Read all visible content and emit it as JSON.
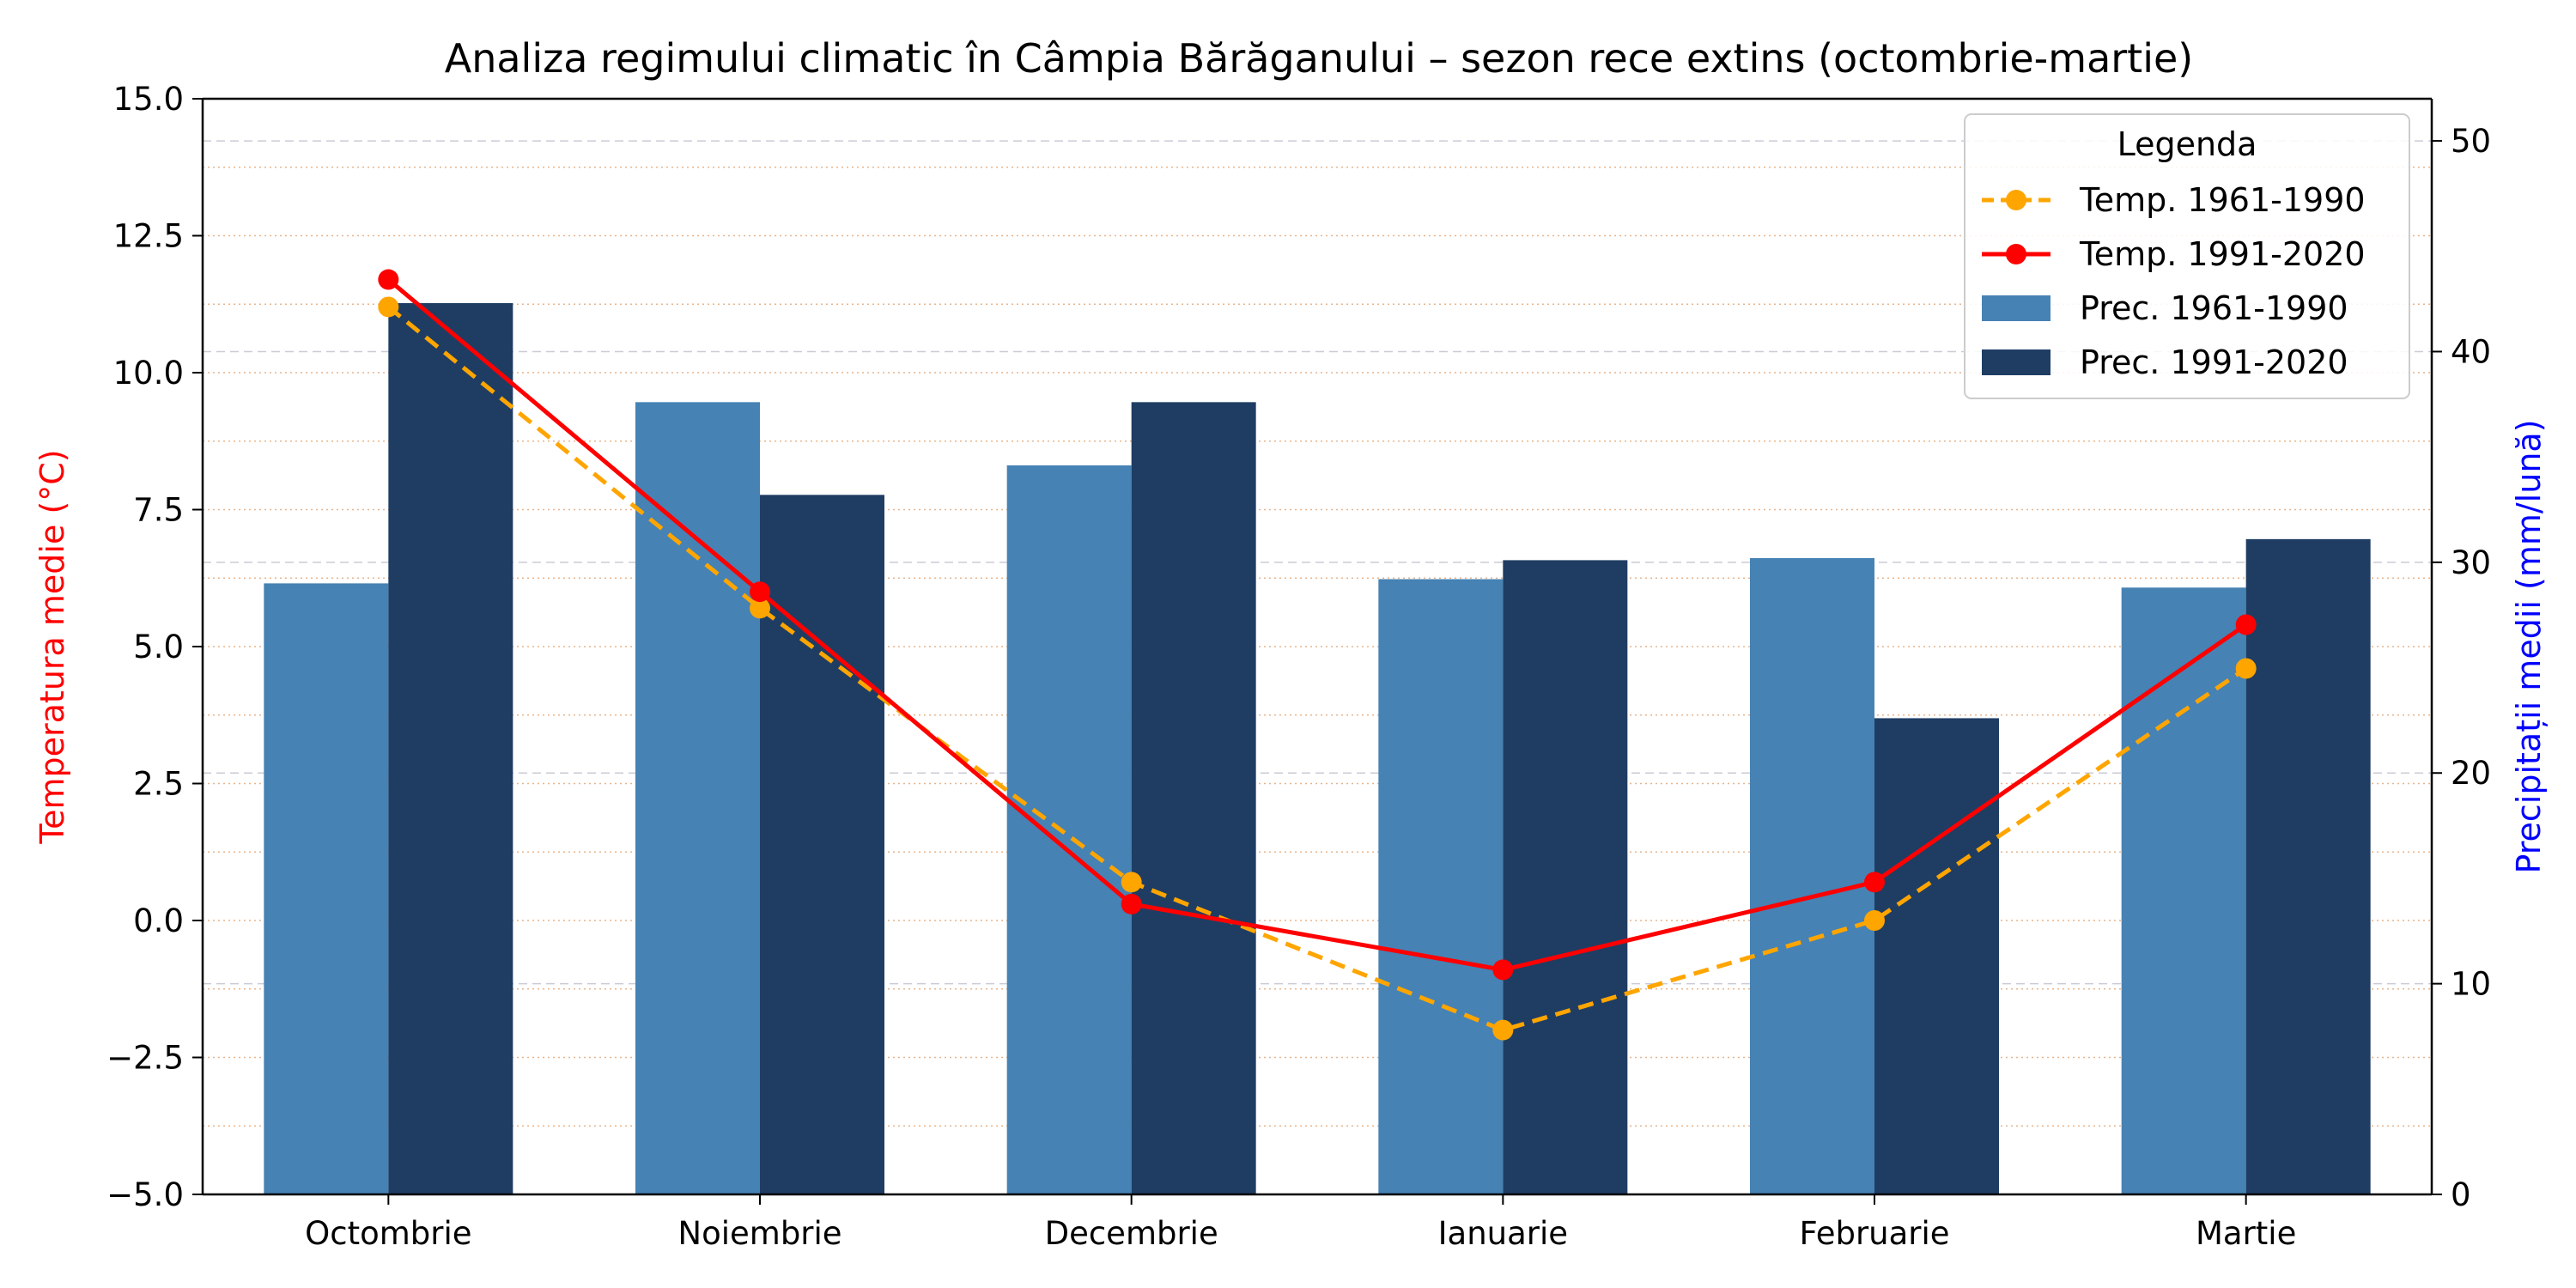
{
  "chart_data": {
    "type": "bar",
    "title": "Analiza regimului climatic în Câmpia Bărăganului – sezon rece extins (octombrie-martie)",
    "categories": [
      "Octombrie",
      "Noiembrie",
      "Decembrie",
      "Ianuarie",
      "Februarie",
      "Martie"
    ],
    "y_left": {
      "label": "Temperatura medie (°C)",
      "color": "#ff0000",
      "range": [
        -5.0,
        15.0
      ],
      "ticks": [
        -5.0,
        -2.5,
        0.0,
        2.5,
        5.0,
        7.5,
        10.0,
        12.5,
        15.0
      ],
      "tick_labels": [
        "−5.0",
        "−2.5",
        "0.0",
        "2.5",
        "5.0",
        "7.5",
        "10.0",
        "12.5",
        "15.0"
      ]
    },
    "y_right": {
      "label": "Precipitații medii (mm/lună)",
      "color": "#0000ff",
      "range": [
        0,
        52
      ],
      "ticks": [
        0,
        10,
        20,
        30,
        40,
        50
      ],
      "tick_labels": [
        "0",
        "10",
        "20",
        "30",
        "40",
        "50"
      ]
    },
    "bar_series": [
      {
        "name": "Prec. 1961-1990",
        "color": "#4682b4",
        "values": [
          29.0,
          37.6,
          34.6,
          29.2,
          30.2,
          28.8
        ]
      },
      {
        "name": "Prec. 1991-2020",
        "color": "#1f3d63",
        "values": [
          42.3,
          33.2,
          37.6,
          30.1,
          22.6,
          31.1
        ]
      }
    ],
    "line_series": [
      {
        "name": "Temp. 1961-1990",
        "color": "#ffa500",
        "style": "dashed",
        "values": [
          11.2,
          5.7,
          0.7,
          -2.0,
          0.0,
          4.6
        ]
      },
      {
        "name": "Temp. 1991-2020",
        "color": "#ff0000",
        "style": "solid",
        "values": [
          11.7,
          6.0,
          0.3,
          -0.9,
          0.7,
          5.4
        ]
      }
    ],
    "legend": {
      "title": "Legenda",
      "placement": "top-right",
      "entries": [
        "Temp. 1961-1990",
        "Temp. 1991-2020",
        "Prec. 1961-1990",
        "Prec. 1991-2020"
      ]
    },
    "grid": true
  }
}
